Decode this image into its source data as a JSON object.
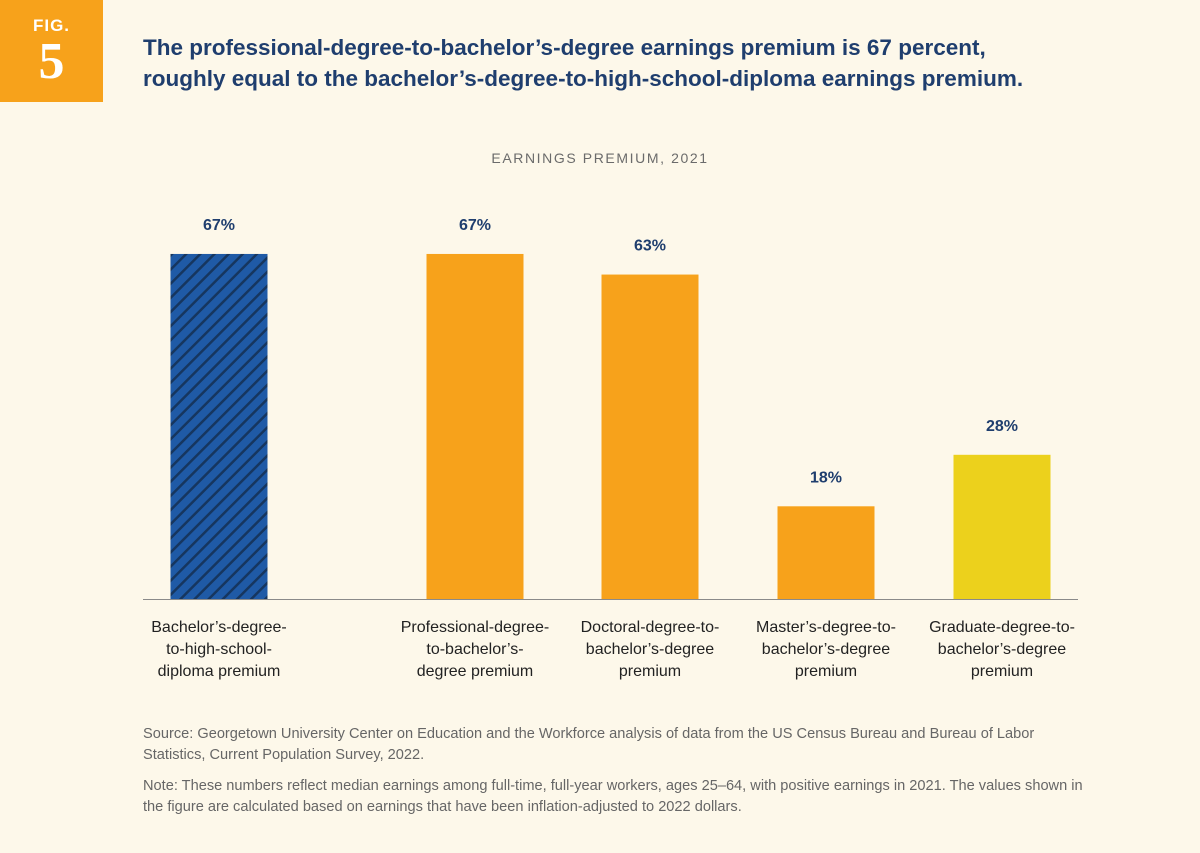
{
  "figure": {
    "label": "FIG.",
    "number": "5"
  },
  "headline": {
    "line1": "The professional-degree-to-bachelor’s-degree earnings premium is 67 percent,",
    "line2": "roughly equal to the bachelor’s-degree-to-high-school-diploma earnings premium."
  },
  "chart_data": {
    "type": "bar",
    "title": "EARNINGS PREMIUM, 2021",
    "xlabel": "",
    "ylabel": "",
    "ylim": [
      0,
      100
    ],
    "grid": false,
    "categories": [
      "Bachelor’s-degree-to-high-school-diploma premium",
      "Professional-degree-to-bachelor’s-degree premium",
      "Doctoral-degree-to-bachelor’s-degree premium",
      "Master’s-degree-to-bachelor’s-degree premium",
      "Graduate-degree-to-bachelor’s-degree premium"
    ],
    "category_label_lines": [
      [
        "Bachelor’s-degree-",
        "to-high-school-",
        "diploma premium"
      ],
      [
        "Professional-degree-",
        "to-bachelor’s-",
        "degree premium"
      ],
      [
        "Doctoral-degree-to-",
        "bachelor’s-degree",
        "premium"
      ],
      [
        "Master’s-degree-to-",
        "bachelor’s-degree",
        "premium"
      ],
      [
        "Graduate-degree-to-",
        "bachelor’s-degree",
        "premium"
      ]
    ],
    "values": [
      67,
      67,
      63,
      18,
      28
    ],
    "data_labels": [
      "67%",
      "67%",
      "63%",
      "18%",
      "28%"
    ],
    "bar_colors": [
      "#1f5aa6",
      "#f7a21b",
      "#f7a21b",
      "#f7a21b",
      "#ecd11c"
    ],
    "bar_patterns": [
      "hatched",
      "solid",
      "solid",
      "solid",
      "solid"
    ],
    "hatch_color": "#16365f",
    "label_color": "#1f3e6e",
    "baseline_color": "#8a8a8a"
  },
  "notes": {
    "source": "Source: Georgetown University Center on Education and the Workforce analysis of data from the US Census Bureau and Bureau of Labor Statistics, Current Population Survey, 2022.",
    "note": "Note: These numbers reflect median earnings among full-time, full-year workers, ages 25–64, with positive earnings in 2021. The values shown in the figure are calculated based on earnings that have been inflation-adjusted to 2022 dollars."
  }
}
